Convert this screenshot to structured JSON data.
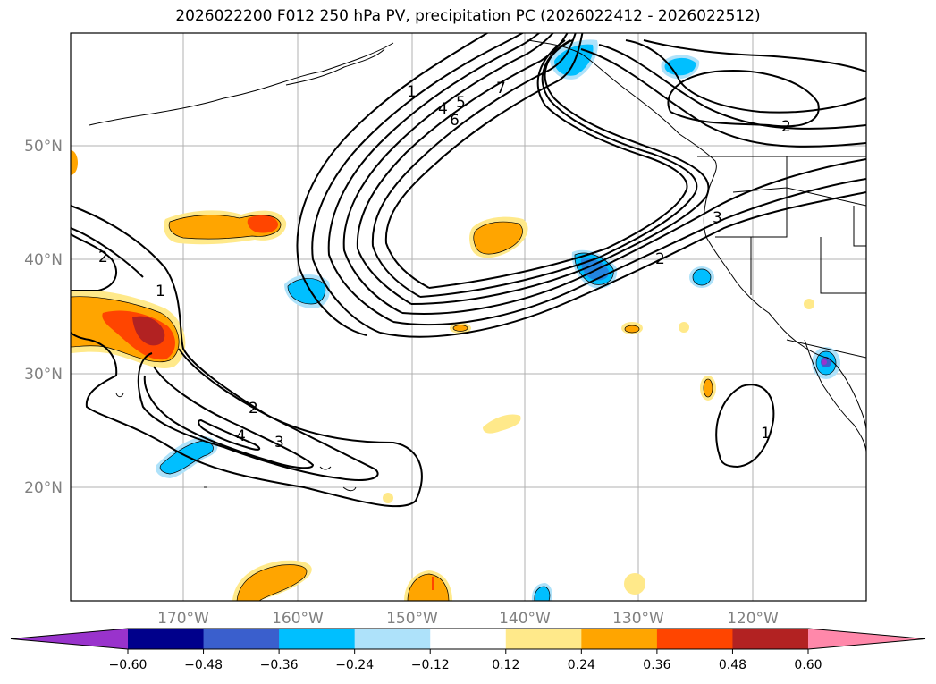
{
  "title": "2026022200 F012 250 hPa PV, precipitation PC (2026022412 - 2026022512)",
  "map": {
    "lat_labels": [
      "50°N",
      "40°N",
      "30°N",
      "20°N"
    ],
    "lon_labels": [
      "170°W",
      "160°W",
      "150°W",
      "140°W",
      "130°W",
      "120°W"
    ],
    "contour_labels": [
      "1",
      "4",
      "5",
      "6",
      "7",
      "2",
      "3",
      "2",
      "2",
      "1",
      "2",
      "4",
      "3",
      "1"
    ]
  },
  "colorbar": {
    "ticks": [
      "−0.60",
      "−0.48",
      "−0.36",
      "−0.24",
      "−0.12",
      "0.12",
      "0.24",
      "0.36",
      "0.48",
      "0.60"
    ],
    "colors": [
      "#9933cc",
      "#00008b",
      "#3a5fcd",
      "#00bfff",
      "#aee2fa",
      "#ffffff",
      "#ffe98a",
      "#ffa500",
      "#ff4500",
      "#b22222",
      "#ff88aa"
    ]
  }
}
